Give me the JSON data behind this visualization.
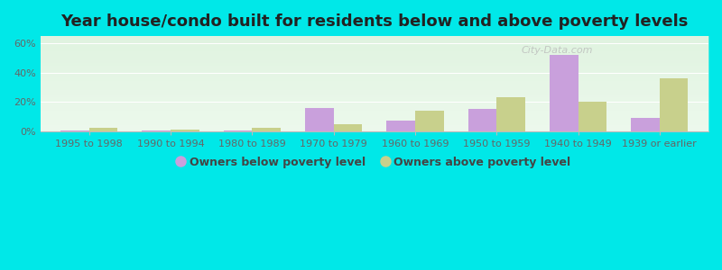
{
  "title": "Year house/condo built for residents below and above poverty levels",
  "categories": [
    "1995 to 1998",
    "1990 to 1994",
    "1980 to 1989",
    "1970 to 1979",
    "1960 to 1969",
    "1950 to 1959",
    "1940 to 1949",
    "1939 or earlier"
  ],
  "below_poverty": [
    0.5,
    0.5,
    0.5,
    16,
    7,
    15,
    52,
    9
  ],
  "above_poverty": [
    2,
    1,
    2,
    5,
    14,
    23,
    20,
    36
  ],
  "below_color": "#c9a0dc",
  "above_color": "#c8d08c",
  "plot_bg_top": "#d4f0d4",
  "plot_bg_bottom": "#f0faf0",
  "outer_background": "#00e8e8",
  "ylim": [
    0,
    65
  ],
  "yticks": [
    0,
    20,
    40,
    60
  ],
  "ytick_labels": [
    "0%",
    "20%",
    "40%",
    "60%"
  ],
  "legend_below": "Owners below poverty level",
  "legend_above": "Owners above poverty level",
  "title_fontsize": 13,
  "tick_fontsize": 8,
  "legend_fontsize": 9,
  "bar_width": 0.35
}
